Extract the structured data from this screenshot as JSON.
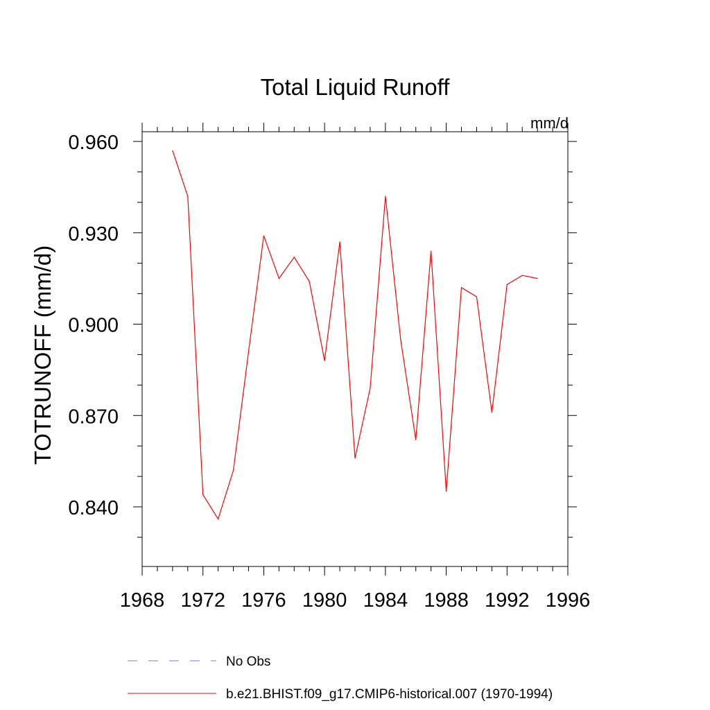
{
  "chart_data": {
    "type": "line",
    "title": "Total Liquid Runoff",
    "units": "mm/d",
    "ylabel": "TOTRUNOFF  (mm/d)",
    "xlabel": "",
    "xlim": [
      1968,
      1996
    ],
    "ylim": [
      0.82,
      0.96
    ],
    "x_ticks": [
      1968,
      1972,
      1976,
      1980,
      1984,
      1988,
      1992,
      1996
    ],
    "x_tick_labels": [
      "1968",
      "1972",
      "1976",
      "1980",
      "1984",
      "1988",
      "1992",
      "1996"
    ],
    "y_ticks": [
      0.96,
      0.93,
      0.9,
      0.87,
      0.84
    ],
    "y_tick_labels": [
      "0.960",
      "0.930",
      "0.900",
      "0.870",
      "0.840"
    ],
    "grid": false,
    "legend_position": "bottom",
    "series": [
      {
        "name": "No Obs",
        "color": "#7b7bd6",
        "style": "dashed",
        "x": [],
        "values": []
      },
      {
        "name": "b.e21.BHIST.f09_g17.CMIP6-historical.007 (1970-1994)",
        "color": "#ff0000",
        "style": "solid",
        "x": [
          1970,
          1971,
          1972,
          1973,
          1974,
          1975,
          1976,
          1977,
          1978,
          1979,
          1980,
          1981,
          1982,
          1983,
          1984,
          1985,
          1986,
          1987,
          1988,
          1989,
          1990,
          1991,
          1992,
          1993,
          1994
        ],
        "values": [
          0.957,
          0.942,
          0.844,
          0.836,
          0.852,
          0.891,
          0.929,
          0.915,
          0.922,
          0.914,
          0.888,
          0.927,
          0.856,
          0.879,
          0.942,
          0.895,
          0.862,
          0.924,
          0.845,
          0.912,
          0.909,
          0.871,
          0.913,
          0.916,
          0.915
        ]
      }
    ]
  }
}
